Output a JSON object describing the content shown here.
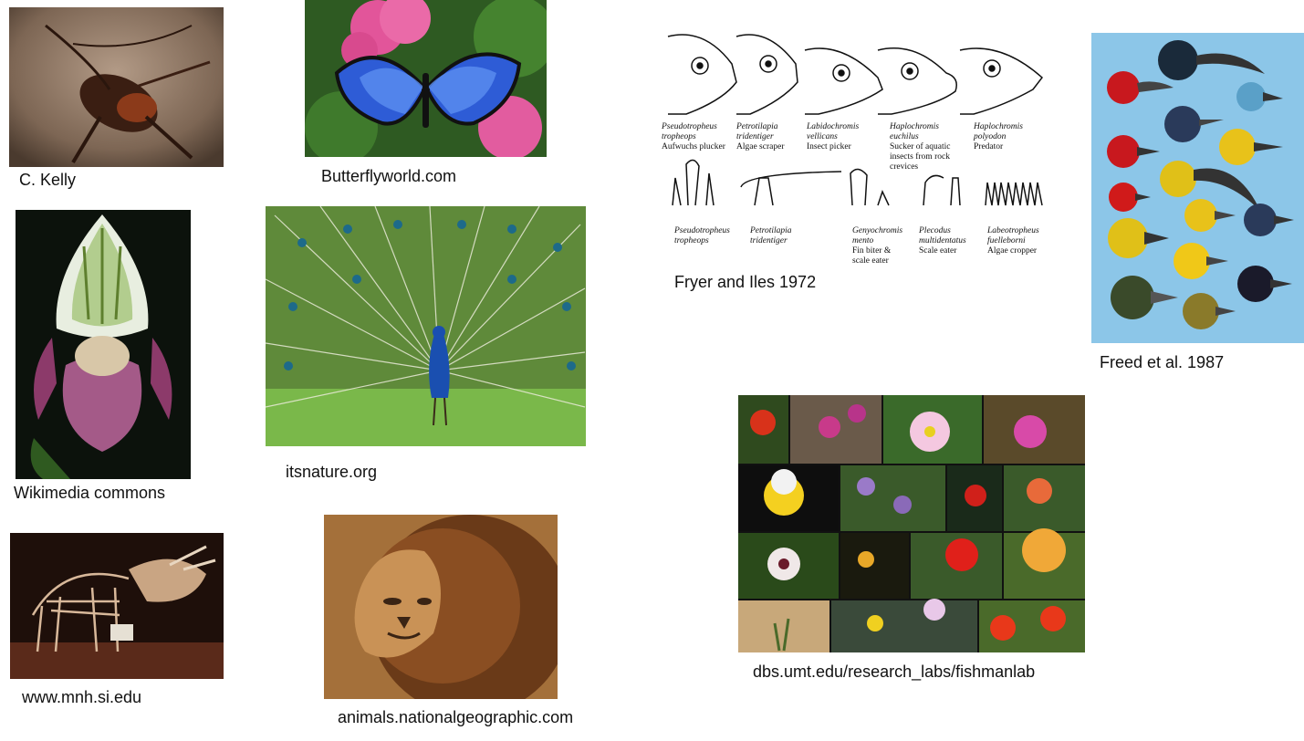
{
  "captions": {
    "cricket": "C. Kelly",
    "butterfly": "Butterflyworld.com",
    "orchid": "Wikimedia commons",
    "peacock": "itsnature.org",
    "skeleton": "www.mnh.si.edu",
    "lion": "animals.nationalgeographic.com",
    "cichlid": "Fryer and Iles 1972",
    "finches": "Freed et al. 1987",
    "flowers": "dbs.umt.edu/research_labs/fishmanlab"
  },
  "cichlid_heads": [
    {
      "genus": "Pseudotropheus",
      "species": "tropheops",
      "role": "Aufwuchs plucker"
    },
    {
      "genus": "Petrotilapia",
      "species": "tridentiger",
      "role": "Algae scraper"
    },
    {
      "genus": "Labidochromis",
      "species": "vellicans",
      "role": "Insect picker"
    },
    {
      "genus": "Haplochromis",
      "species": "euchilus",
      "role": "Sucker of aquatic",
      "role2": "insects from rock",
      "role3": "crevices"
    },
    {
      "genus": "Haplochromis",
      "species": "polyodon",
      "role": "Predator"
    }
  ],
  "cichlid_teeth": [
    {
      "genus": "Pseudotropheus",
      "species": "tropheops",
      "role": ""
    },
    {
      "genus": "Petrotilapia",
      "species": "tridentiger",
      "role": ""
    },
    {
      "genus": "Genyochromis",
      "species": "mento",
      "role": "Fin biter &",
      "role2": "scale eater"
    },
    {
      "genus": "Plecodus",
      "species": "multidentatus",
      "role": "Scale eater"
    },
    {
      "genus": "Labeotropheus",
      "species": "fuelleborni",
      "role": "Algae cropper"
    }
  ]
}
